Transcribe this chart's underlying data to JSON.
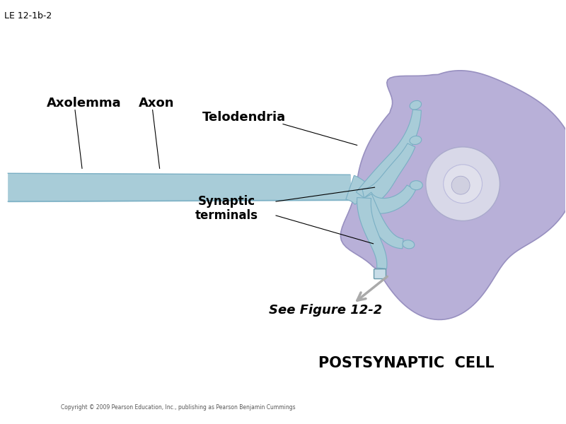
{
  "title_label": "LE 12-1b-2",
  "axolemma_label": "Axolemma",
  "axon_label": "Axon",
  "telodendria_label": "Telodendria",
  "synaptic_label": "Synaptic\nterminals",
  "see_figure_label": "See Figure 12-2",
  "postsynaptic_label": "POSTSYNAPTIC  CELL",
  "copyright_label": "Copyright © 2009 Pearson Education, Inc., publishing as Pearson Benjamin Cummings",
  "bg_color": "#ffffff",
  "axon_color": "#a8ccd8",
  "axon_dark_color": "#7aafc4",
  "cell_body_color": "#b8b0d8",
  "cell_body_dark_color": "#9890c0",
  "nucleus_color": "#d8d8e8",
  "nucleus_inner_color": "#e8e8f0"
}
